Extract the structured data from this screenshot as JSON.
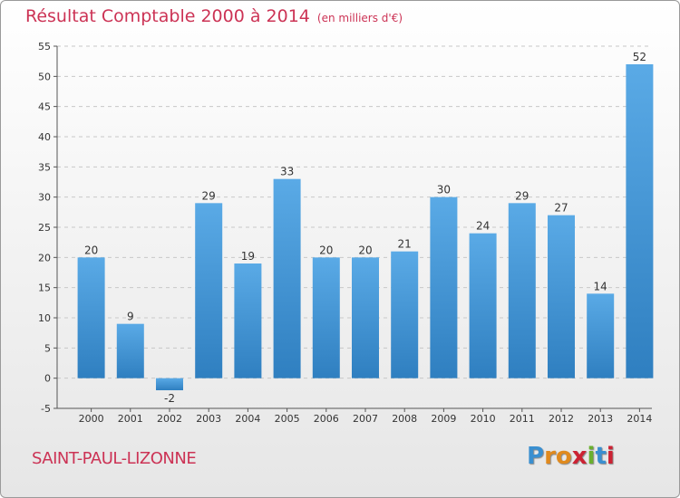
{
  "chart_data": {
    "type": "bar",
    "title": "Résultat Comptable 2000 à 2014",
    "subtitle": "(en milliers d'€)",
    "categories": [
      "2000",
      "2001",
      "2002",
      "2003",
      "2004",
      "2005",
      "2006",
      "2007",
      "2008",
      "2009",
      "2010",
      "2011",
      "2012",
      "2013",
      "2014"
    ],
    "values": [
      20,
      9,
      -2,
      29,
      19,
      33,
      20,
      20,
      21,
      30,
      24,
      29,
      27,
      14,
      52
    ],
    "ylim": [
      -5,
      55
    ],
    "yticks": [
      -5,
      0,
      5,
      10,
      15,
      20,
      25,
      30,
      35,
      40,
      45,
      50,
      55
    ],
    "grid": true,
    "xlabel": "",
    "ylabel": "",
    "bar_color_top": "#5aaae6",
    "bar_color_bottom": "#2f7fc0"
  },
  "footer": {
    "location": "SAINT-PAUL-LIZONNE",
    "brand_letters": [
      "P",
      "r",
      "o",
      "x",
      "i",
      "t",
      "i"
    ],
    "brand_colors": [
      "#3a8fd0",
      "#e08a1e",
      "#e08a1e",
      "#cc2233",
      "#6ab02e",
      "#3a8fd0",
      "#cc2233"
    ]
  }
}
